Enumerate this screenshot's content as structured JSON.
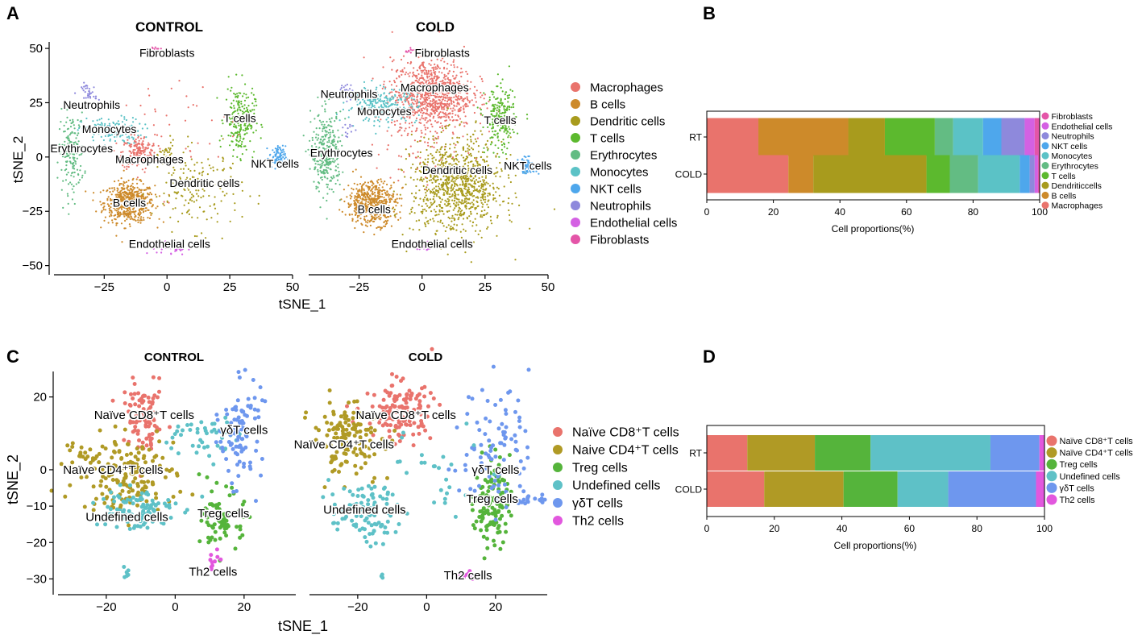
{
  "colors": {
    "macrophages": "#E9736C",
    "b_cells": "#CD8A2A",
    "dendritic": "#A89B1D",
    "t_cells": "#5CB92E",
    "erythrocytes": "#63BC83",
    "monocytes": "#5BC2C6",
    "nkt": "#4EA7EC",
    "neutrophils": "#8E89DC",
    "endothelial": "#D461E3",
    "fibroblasts": "#E455A8",
    "naive_cd8": "#E9736C",
    "naive_cd4": "#B09A25",
    "treg": "#55B43B",
    "undefined": "#5EC1C7",
    "gdt": "#6E97EE",
    "th2": "#E257DE"
  },
  "chart_data": [
    {
      "panel": "A",
      "type": "scatter",
      "subplots": [
        "CONTROL",
        "COLD"
      ],
      "xlabel": "tSNE_1",
      "ylabel": "tSNE_2",
      "xlim": [
        -45,
        50
      ],
      "ylim": [
        -52,
        53
      ],
      "xticks": [
        -25,
        0,
        25,
        50
      ],
      "yticks": [
        -50,
        -25,
        0,
        25,
        50
      ],
      "legend": [
        "Macrophages",
        "B cells",
        "Dendritic cells",
        "T cells",
        "Erythrocytes",
        "Monocytes",
        "NKT cells",
        "Neutrophils",
        "Endothelial cells",
        "Fibroblasts"
      ],
      "cluster_labels": {
        "CONTROL": [
          {
            "text": "Fibroblasts",
            "x": 0,
            "y": 48
          },
          {
            "text": "Neutrophils",
            "x": -30,
            "y": 24
          },
          {
            "text": "Monocytes",
            "x": -23,
            "y": 13
          },
          {
            "text": "Erythrocytes",
            "x": -34,
            "y": 4
          },
          {
            "text": "Macrophages",
            "x": -7,
            "y": -1
          },
          {
            "text": "T cells",
            "x": 29,
            "y": 18
          },
          {
            "text": "NKT cells",
            "x": 43,
            "y": -3
          },
          {
            "text": "Dendritic cells",
            "x": 15,
            "y": -12
          },
          {
            "text": "B cells",
            "x": -15,
            "y": -21
          },
          {
            "text": "Endothelial cells",
            "x": 1,
            "y": -40
          }
        ],
        "COLD": [
          {
            "text": "Fibroblasts",
            "x": 8,
            "y": 48
          },
          {
            "text": "Macrophages",
            "x": 5,
            "y": 32
          },
          {
            "text": "Neutrophils",
            "x": -29,
            "y": 29
          },
          {
            "text": "Monocytes",
            "x": -15,
            "y": 21
          },
          {
            "text": "T cells",
            "x": 31,
            "y": 17
          },
          {
            "text": "Erythrocytes",
            "x": -32,
            "y": 2
          },
          {
            "text": "NKT cells",
            "x": 42,
            "y": -4
          },
          {
            "text": "Dendritic cells",
            "x": 14,
            "y": -6
          },
          {
            "text": "B cells",
            "x": -19,
            "y": -24
          },
          {
            "text": "Endothelial cells",
            "x": 4,
            "y": -40
          }
        ]
      }
    },
    {
      "panel": "B",
      "type": "bar",
      "orientation": "horizontal",
      "stacked": true,
      "categories": [
        "RT",
        "COLD"
      ],
      "xlabel": "Cell proportions(%)",
      "xlim": [
        0,
        100
      ],
      "xticks": [
        0,
        20,
        40,
        60,
        80,
        100
      ],
      "legend": [
        "Fibroblasts",
        "Endothelial cells",
        "Neutrophils",
        "NKT cells",
        "Monocytes",
        "Erythrocytes",
        "T cells",
        "Dendriticcells",
        "B cells",
        "Macrophages"
      ],
      "series": [
        {
          "name": "Macrophages",
          "values": [
            15.5,
            24.5
          ]
        },
        {
          "name": "B cells",
          "values": [
            27,
            7.5
          ]
        },
        {
          "name": "Dendriticcells",
          "values": [
            11,
            34
          ]
        },
        {
          "name": "T cells",
          "values": [
            15,
            7
          ]
        },
        {
          "name": "Erythrocytes",
          "values": [
            5.5,
            8.5
          ]
        },
        {
          "name": "Monocytes",
          "values": [
            9,
            12.5
          ]
        },
        {
          "name": "NKT cells",
          "values": [
            5.5,
            3
          ]
        },
        {
          "name": "Neutrophils",
          "values": [
            7,
            1.5
          ]
        },
        {
          "name": "Endothelial cells",
          "values": [
            3,
            1
          ]
        },
        {
          "name": "Fibroblasts",
          "values": [
            1.5,
            0.5
          ]
        }
      ]
    },
    {
      "panel": "C",
      "type": "scatter",
      "subplots": [
        "CONTROL",
        "COLD"
      ],
      "xlabel": "tSNE_1",
      "ylabel": "tSNE_2",
      "xlim": [
        -34,
        35
      ],
      "ylim": [
        -33,
        27
      ],
      "xticks": [
        -20,
        0,
        20
      ],
      "yticks": [
        -30,
        -20,
        -10,
        0,
        20
      ],
      "legend": [
        "Naïve CD8⁺T cells",
        "Naive CD4⁺T cells",
        "Treg cells",
        "Undefined cells",
        "γδT cells",
        "Th2 cells"
      ],
      "cluster_labels": {
        "CONTROL": [
          {
            "text": "Naïve  CD8⁺T cells",
            "x": -9,
            "y": 15
          },
          {
            "text": "γδT cells",
            "x": 20,
            "y": 11
          },
          {
            "text": "Naïve  CD4⁺T cells",
            "x": -18,
            "y": 0
          },
          {
            "text": "Treg cells",
            "x": 14,
            "y": -12
          },
          {
            "text": "Undefined cells",
            "x": -14,
            "y": -13
          },
          {
            "text": "Th2 cells",
            "x": 11,
            "y": -28
          }
        ],
        "COLD": [
          {
            "text": "Naïve  CD8⁺T cells",
            "x": -6,
            "y": 15
          },
          {
            "text": "Naïve  CD4⁺T cells",
            "x": -24,
            "y": 7
          },
          {
            "text": "γδT cells",
            "x": 20,
            "y": 0
          },
          {
            "text": "Treg cells",
            "x": 19,
            "y": -8
          },
          {
            "text": "Undefined cells",
            "x": -18,
            "y": -11
          },
          {
            "text": "Th2 cells",
            "x": 12,
            "y": -29
          }
        ]
      }
    },
    {
      "panel": "D",
      "type": "bar",
      "orientation": "horizontal",
      "stacked": true,
      "categories": [
        "RT",
        "COLD"
      ],
      "xlabel": "Cell proportions(%)",
      "xlim": [
        0,
        100
      ],
      "xticks": [
        0,
        20,
        40,
        60,
        80,
        100
      ],
      "legend": [
        "Naïve CD8⁺T cells",
        "Naïve CD4⁺T cells",
        "Treg cells",
        "Undefined cells",
        "γδT cells",
        "Th2 cells"
      ],
      "series": [
        {
          "name": "Naïve CD8⁺T cells",
          "values": [
            12,
            17
          ]
        },
        {
          "name": "Naïve CD4⁺T cells",
          "values": [
            20,
            23.5
          ]
        },
        {
          "name": "Treg cells",
          "values": [
            16.5,
            16
          ]
        },
        {
          "name": "Undefined cells",
          "values": [
            35.5,
            15
          ]
        },
        {
          "name": "γδT cells",
          "values": [
            14.5,
            26
          ]
        },
        {
          "name": "Th2 cells",
          "values": [
            1.5,
            2.5
          ]
        }
      ]
    }
  ],
  "panel_letters": [
    "A",
    "B",
    "C",
    "D"
  ]
}
